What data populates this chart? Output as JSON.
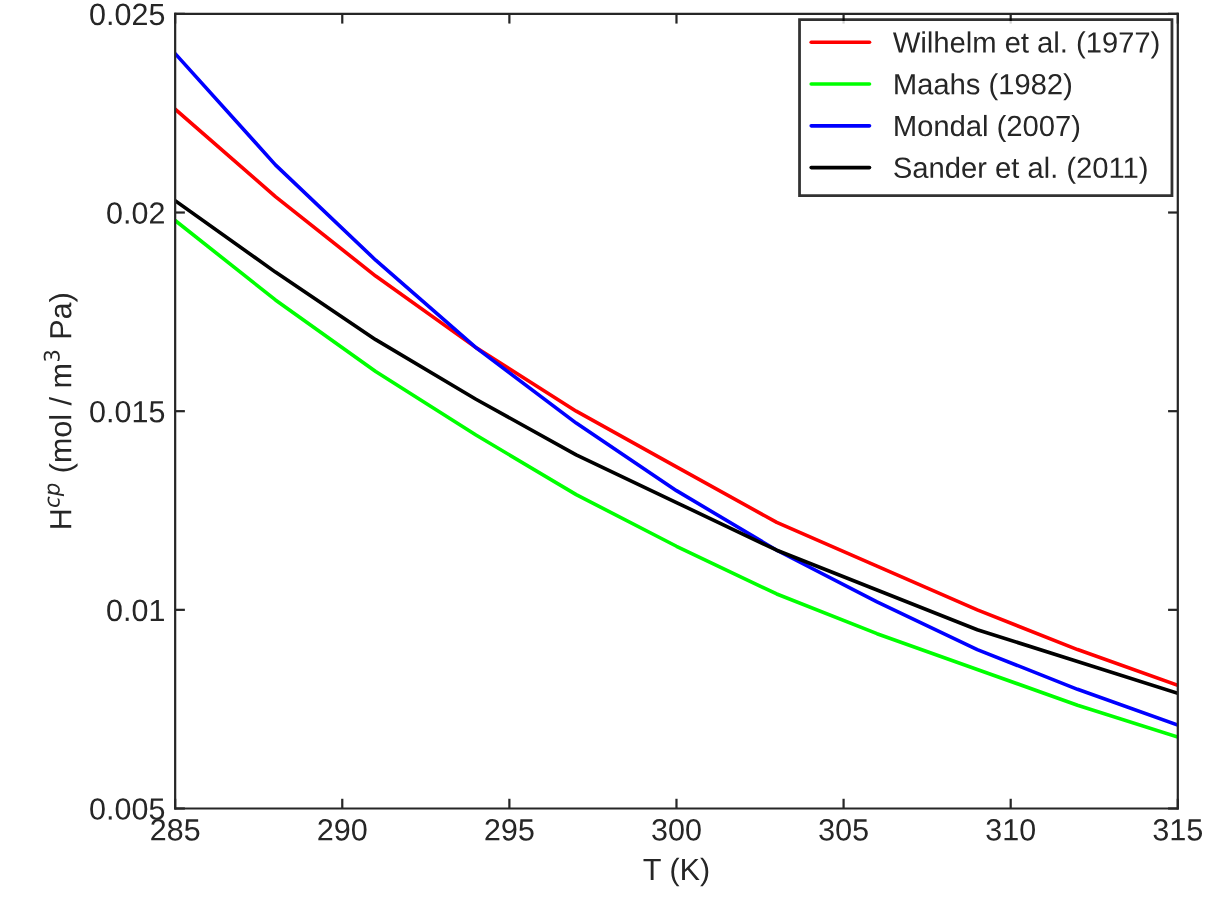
{
  "chart_data": {
    "type": "line",
    "xlabel": "T (K)",
    "ylabel": "H$^{cp}$ (mol / m$^{3}$ Pa)",
    "x": [
      285,
      288,
      291,
      294,
      297,
      300,
      303,
      306,
      309,
      312,
      315
    ],
    "series": [
      {
        "name": "Wilhelm et al. (1977)",
        "color": "#ff0000",
        "values": [
          0.0226,
          0.0204,
          0.0184,
          0.0166,
          0.015,
          0.0136,
          0.0122,
          0.0111,
          0.01,
          0.009,
          0.0081
        ]
      },
      {
        "name": "Maahs (1982)",
        "color": "#00ff00",
        "values": [
          0.0198,
          0.0178,
          0.016,
          0.0144,
          0.0129,
          0.0116,
          0.0104,
          0.0094,
          0.0085,
          0.0076,
          0.0068
        ]
      },
      {
        "name": "Mondal (2007)",
        "color": "#0000ff",
        "values": [
          0.024,
          0.0212,
          0.0188,
          0.0166,
          0.0147,
          0.013,
          0.0115,
          0.0102,
          0.009,
          0.008,
          0.0071
        ]
      },
      {
        "name": "Sander et al. (2011)",
        "color": "#000000",
        "values": [
          0.0203,
          0.0185,
          0.0168,
          0.0153,
          0.0139,
          0.0127,
          0.0115,
          0.0105,
          0.0095,
          0.0087,
          0.0079
        ]
      }
    ],
    "xlim": [
      285,
      315
    ],
    "xticks": [
      285,
      290,
      295,
      300,
      305,
      310,
      315
    ],
    "ylim": [
      0.005,
      0.025
    ],
    "yticks": [
      0.005,
      0.01,
      0.015,
      0.02,
      0.025
    ],
    "legend": "top right",
    "grid": false
  }
}
